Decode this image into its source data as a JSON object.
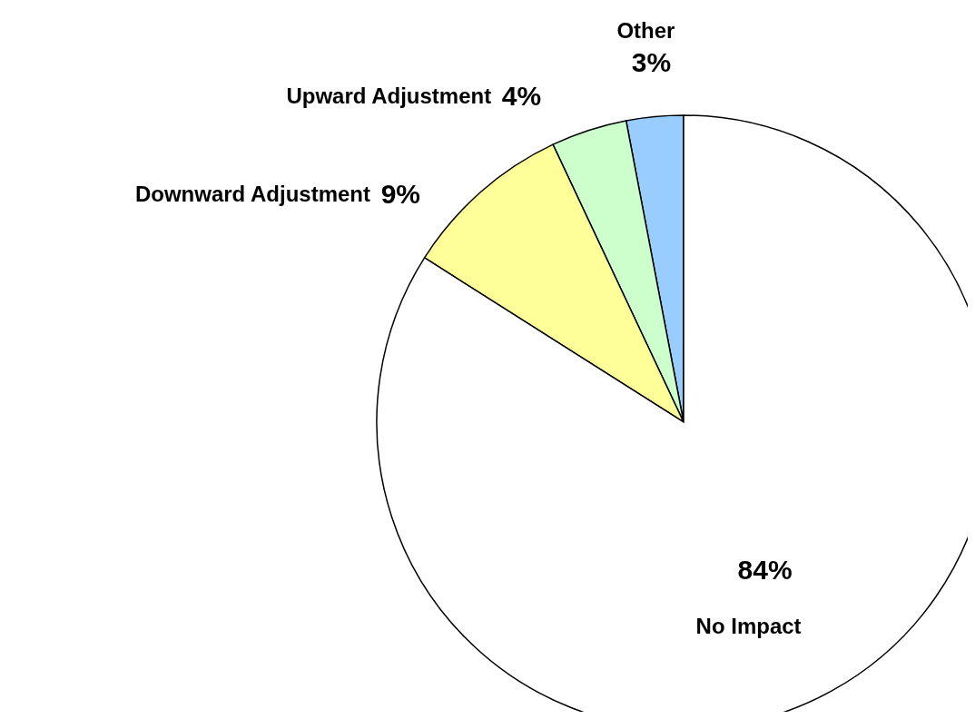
{
  "chart_data": {
    "type": "pie",
    "categories": [
      "Other",
      "Upward Adjustment",
      "Downward Adjustment",
      "No Impact"
    ],
    "values": [
      3,
      4,
      9,
      84
    ],
    "colors": [
      "#99ccff",
      "#ccffcc",
      "#ffff99",
      "#ffffff"
    ],
    "value_labels": [
      "3%",
      "4%",
      "9%",
      "84%"
    ]
  }
}
